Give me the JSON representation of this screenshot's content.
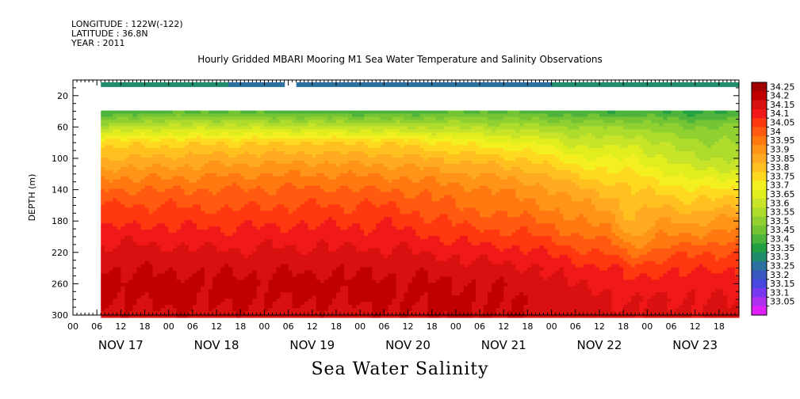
{
  "header": {
    "longitude": "LONGITUDE : 122W(-122)",
    "latitude": "LATITUDE : 36.8N",
    "year": "YEAR : 2011"
  },
  "footer": {
    "variable_title": "Sea Water Salinity"
  },
  "chart_data": {
    "type": "heatmap",
    "title": "Hourly Gridded MBARI Mooring M1 Sea Water Temperature and Salinity Observations",
    "ylabel": "DEPTH (m)",
    "xlabel": "",
    "y_reversed": true,
    "ylim": [
      0,
      300
    ],
    "y_ticks": [
      20,
      60,
      100,
      140,
      180,
      220,
      260,
      300
    ],
    "x_hours_range": [
      0,
      167
    ],
    "x_day_labels": [
      "NOV 17",
      "NOV 18",
      "NOV 19",
      "NOV 20",
      "NOV 21",
      "NOV 22",
      "NOV 23"
    ],
    "x_hour_labels": [
      "00",
      "06",
      "12",
      "18"
    ],
    "data_start_hour": 7,
    "surface_depth_m": 6,
    "main_top_depth_m": 39,
    "surface_gap_hours": [
      53,
      56
    ],
    "colorbar_levels": [
      "34.25",
      "34.2",
      "34.15",
      "34.1",
      "34.05",
      "34",
      "33.95",
      "33.9",
      "33.85",
      "33.8",
      "33.75",
      "33.7",
      "33.65",
      "33.6",
      "33.55",
      "33.5",
      "33.45",
      "33.4",
      "33.35",
      "33.3",
      "33.25",
      "33.2",
      "33.15",
      "33.1",
      "33.05"
    ],
    "colorbar_colors": [
      "#a00000",
      "#c00000",
      "#d81010",
      "#f01818",
      "#ff3810",
      "#ff5a10",
      "#ff7810",
      "#ff9418",
      "#ffaa20",
      "#ffc020",
      "#ffd820",
      "#f4f020",
      "#e0ee20",
      "#c8e428",
      "#aedc2c",
      "#90d030",
      "#74c434",
      "#4cb43c",
      "#24a044",
      "#208c6c",
      "#2c70a0",
      "#3858c0",
      "#4848e0",
      "#7838ee",
      "#b030f0",
      "#e020f8"
    ],
    "profile_depths": [
      39,
      60,
      80,
      100,
      120,
      140,
      160,
      180,
      200,
      220,
      240,
      260,
      280,
      300
    ],
    "profile_time_hours": [
      7,
      20,
      35,
      60,
      80,
      100,
      115,
      125,
      135,
      140,
      147,
      155,
      167
    ],
    "profile_salinity": [
      [
        33.38,
        33.58,
        33.78,
        33.85,
        33.93,
        34.0,
        34.06,
        34.08,
        34.13,
        34.17,
        34.2,
        34.22,
        34.2,
        34.18
      ],
      [
        33.42,
        33.62,
        33.78,
        33.86,
        33.93,
        34.0,
        34.05,
        34.09,
        34.13,
        34.17,
        34.19,
        34.22,
        34.21,
        34.19
      ],
      [
        33.43,
        33.63,
        33.79,
        33.87,
        33.94,
        34.0,
        34.04,
        34.08,
        34.12,
        34.16,
        34.19,
        34.21,
        34.21,
        34.19
      ],
      [
        33.41,
        33.62,
        33.8,
        33.88,
        33.95,
        34.01,
        34.05,
        34.09,
        34.13,
        34.16,
        34.19,
        34.22,
        34.2,
        34.18
      ],
      [
        33.4,
        33.6,
        33.79,
        33.87,
        33.94,
        34.0,
        34.05,
        34.09,
        34.12,
        34.16,
        34.19,
        34.21,
        34.21,
        34.19
      ],
      [
        33.44,
        33.59,
        33.73,
        33.83,
        33.9,
        33.96,
        33.99,
        34.03,
        34.08,
        34.13,
        34.17,
        34.2,
        34.21,
        34.21
      ],
      [
        33.42,
        33.57,
        33.7,
        33.79,
        33.87,
        33.93,
        33.96,
        34.01,
        34.06,
        34.11,
        34.16,
        34.18,
        34.19,
        34.19
      ],
      [
        33.4,
        33.55,
        33.64,
        33.72,
        33.8,
        33.87,
        33.92,
        33.96,
        34.01,
        34.07,
        34.12,
        34.15,
        34.17,
        34.18
      ],
      [
        33.4,
        33.55,
        33.62,
        33.7,
        33.76,
        33.83,
        33.88,
        33.92,
        33.98,
        34.04,
        34.11,
        34.14,
        34.16,
        34.17
      ],
      [
        33.4,
        33.55,
        33.65,
        33.7,
        33.76,
        33.8,
        33.82,
        33.85,
        33.9,
        33.98,
        34.06,
        34.11,
        34.14,
        34.16
      ],
      [
        33.4,
        33.52,
        33.6,
        33.66,
        33.72,
        33.79,
        33.85,
        33.9,
        33.95,
        34.02,
        34.09,
        34.13,
        34.16,
        34.16
      ],
      [
        33.38,
        33.5,
        33.56,
        33.6,
        33.67,
        33.75,
        33.82,
        33.89,
        33.96,
        34.04,
        34.09,
        34.13,
        34.15,
        34.16
      ],
      [
        33.39,
        33.51,
        33.55,
        33.6,
        33.67,
        33.76,
        33.84,
        33.92,
        33.98,
        34.05,
        34.1,
        34.13,
        34.15,
        34.16
      ]
    ],
    "surface_salinity": [
      [
        7,
        33.33
      ],
      [
        60,
        33.28
      ],
      [
        120,
        33.3
      ],
      [
        160,
        33.32
      ],
      [
        167,
        33.32
      ]
    ]
  }
}
